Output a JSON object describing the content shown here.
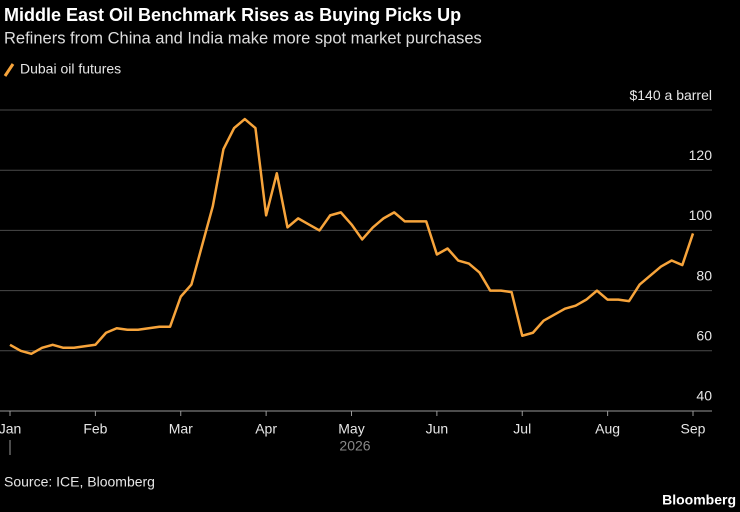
{
  "chart_data": {
    "type": "line",
    "title": "Middle East Oil Benchmark Rises as Buying Picks Up",
    "subtitle": "Refiners from China and India make more spot market purchases",
    "categories": [
      "Jan",
      null,
      null,
      null,
      null,
      null,
      null,
      null,
      "Feb",
      null,
      null,
      null,
      null,
      null,
      null,
      null,
      "Mar",
      null,
      null,
      null,
      null,
      null,
      null,
      null,
      "Apr",
      null,
      null,
      null,
      null,
      null,
      null,
      null,
      "May",
      null,
      null,
      null,
      null,
      null,
      null,
      null,
      "Jun",
      null,
      null,
      null,
      null,
      null,
      null,
      null,
      "Jul",
      null,
      null,
      null,
      null,
      null,
      null,
      null,
      "Aug",
      null,
      null,
      null,
      null,
      null,
      null,
      null,
      "Sep"
    ],
    "year_label": "2026",
    "series": [
      {
        "name": "Dubai oil futures",
        "color": "#f7a43b",
        "values": [
          62,
          60,
          59,
          61,
          62,
          61,
          61,
          61.5,
          62,
          66,
          67.5,
          67,
          67,
          67.5,
          68,
          68,
          78,
          82,
          95,
          108,
          127,
          134,
          137,
          134,
          105,
          119,
          101,
          104,
          102,
          100,
          105,
          106,
          102,
          97,
          101,
          104,
          106,
          103,
          103,
          103,
          92,
          94,
          90,
          89,
          86,
          80,
          80,
          79.5,
          65,
          66,
          70,
          72,
          74,
          75,
          77,
          80,
          77,
          77,
          76.5,
          82,
          85,
          88,
          90,
          88.5,
          99
        ]
      }
    ],
    "ylim": [
      40,
      145
    ],
    "yticks": [
      40,
      60,
      80,
      100,
      120,
      {
        "value": 140,
        "label": "$140 a barrel"
      }
    ],
    "grid": true,
    "source": "Source: ICE, Bloomberg",
    "brand": "Bloomberg"
  }
}
